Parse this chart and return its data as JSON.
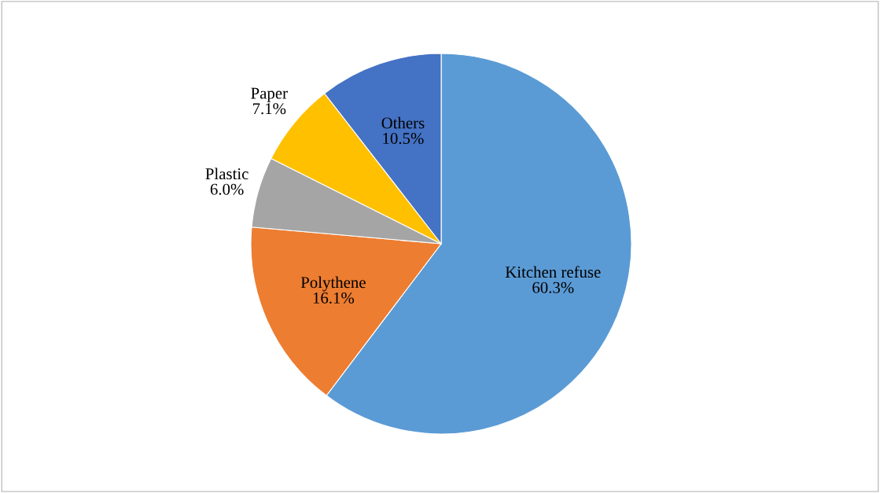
{
  "chart_data": {
    "type": "pie",
    "categories": [
      "Kitchen refuse",
      "Polythene",
      "Plastic",
      "Paper",
      "Others"
    ],
    "values": [
      60.3,
      16.1,
      6.0,
      7.1,
      10.5
    ],
    "value_labels": [
      "60.3%",
      "16.1%",
      "6.0%",
      "7.1%",
      "10.5%"
    ],
    "colors": [
      "#5b9bd5",
      "#ed7d31",
      "#a5a5a5",
      "#ffc000",
      "#4472c4"
    ],
    "legend": false
  }
}
